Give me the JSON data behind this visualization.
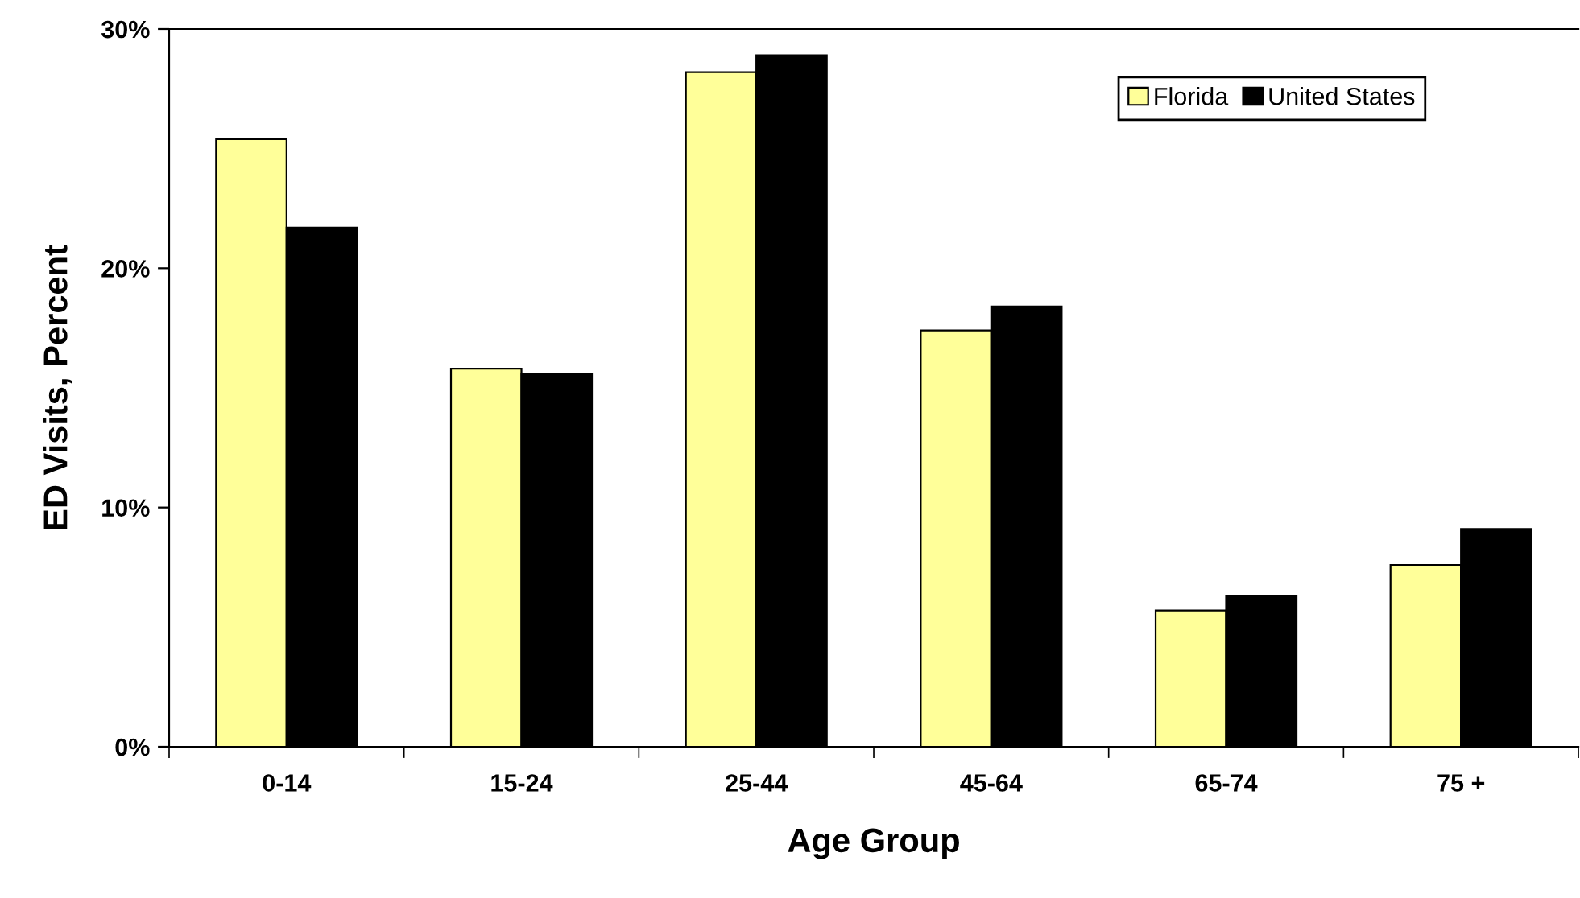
{
  "chart_data": {
    "type": "bar",
    "xlabel": "Age Group",
    "ylabel": "ED Visits, Percent",
    "categories": [
      "0-14",
      "15-24",
      "25-44",
      "45-64",
      "65-74",
      "75 +"
    ],
    "series": [
      {
        "name": "Florida",
        "color": "#ffff99",
        "values": [
          25.4,
          15.8,
          28.2,
          17.4,
          5.7,
          7.6
        ]
      },
      {
        "name": "United States",
        "color": "#000000",
        "values": [
          21.7,
          15.6,
          28.9,
          18.4,
          6.3,
          9.1
        ]
      }
    ],
    "ylim": [
      0,
      30
    ],
    "yticks": [
      {
        "value": 0,
        "label": "0%"
      },
      {
        "value": 10,
        "label": "10%"
      },
      {
        "value": 20,
        "label": "20%"
      },
      {
        "value": 30,
        "label": "30%"
      }
    ],
    "grid": false,
    "legend": "top right"
  }
}
